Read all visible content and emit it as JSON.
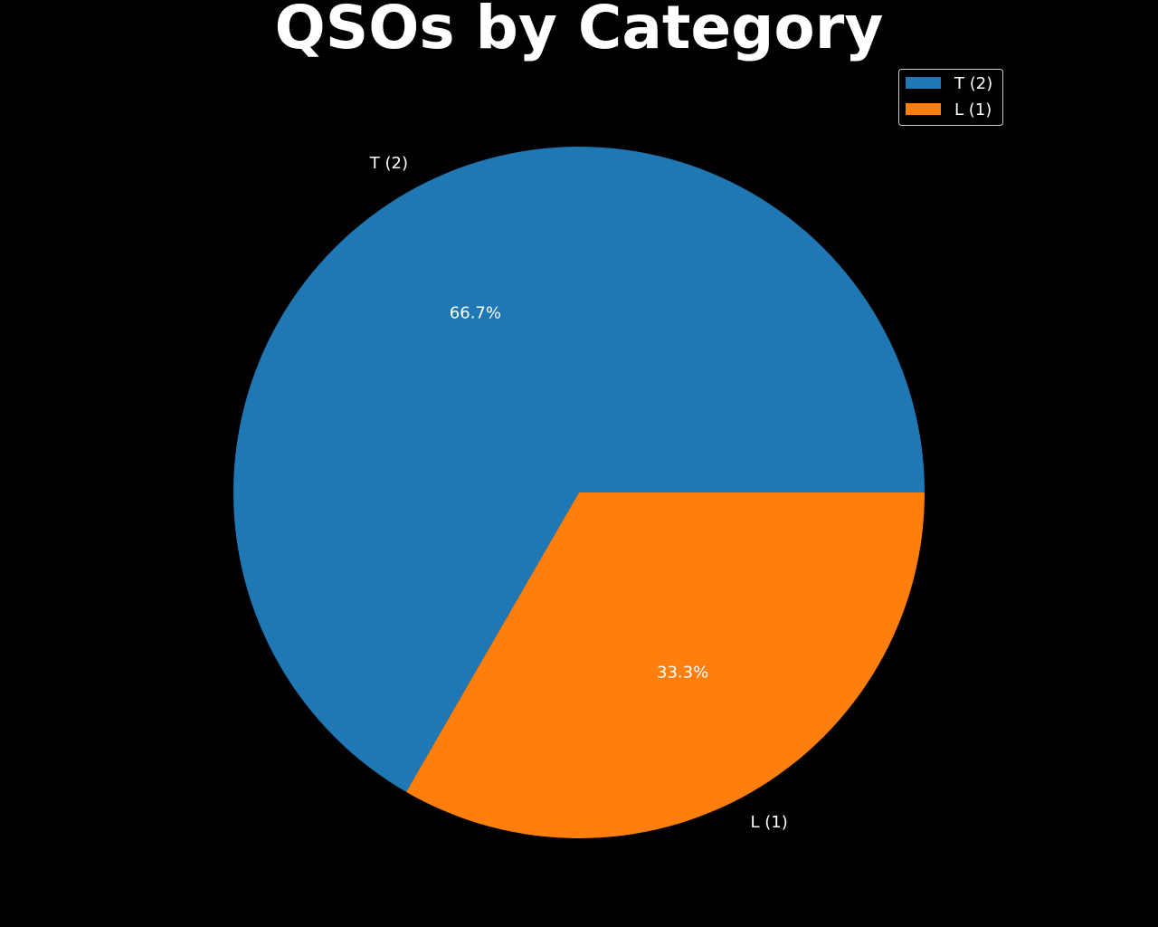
{
  "chart_data": {
    "type": "pie",
    "title": "QSOs by Category",
    "categories": [
      "T (2)",
      "L (1)"
    ],
    "values": [
      2,
      1
    ],
    "percent_labels": [
      "66.7%",
      "33.3%"
    ],
    "colors": [
      "#1f77b4",
      "#ff7f0e"
    ],
    "start_angle": 0,
    "direction": "counterclockwise",
    "legend": {
      "position": "upper right",
      "entries": [
        "T (2)",
        "L (1)"
      ]
    },
    "background": "#000000",
    "text_color": "#ffffff"
  }
}
